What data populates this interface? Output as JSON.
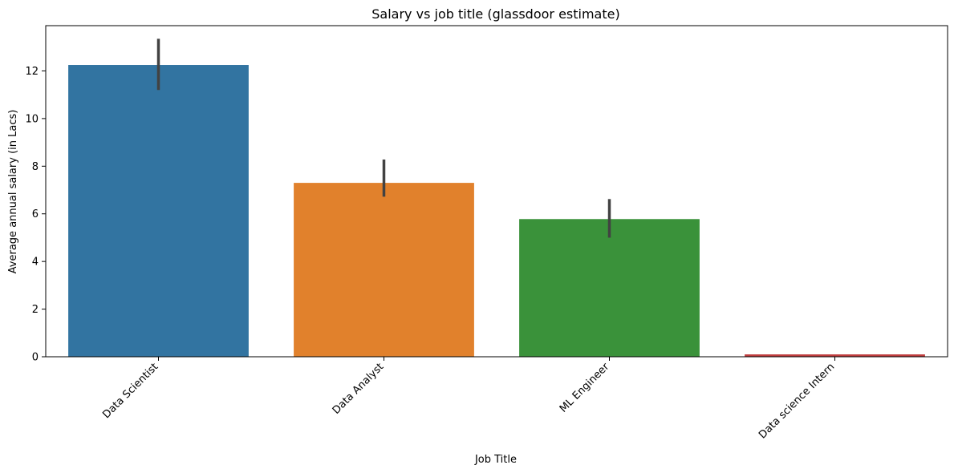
{
  "chart_data": {
    "type": "bar",
    "title": "Salary vs job title (glassdoor estimate)",
    "xlabel": "Job Title",
    "ylabel": "Average annual salary (in Lacs)",
    "categories": [
      "Data Scientist",
      "Data Analyst",
      "ML Engineer",
      "Data science Intern"
    ],
    "values": [
      12.25,
      7.3,
      5.78,
      0.1
    ],
    "error_low": [
      11.2,
      6.72,
      5.0,
      0.1
    ],
    "error_high": [
      13.35,
      8.28,
      6.62,
      0.1
    ],
    "colors": [
      "#3274a1",
      "#e1812c",
      "#3a923a",
      "#c03d3e"
    ],
    "error_color": "#424242",
    "ylim": [
      0,
      13.9
    ],
    "yticks": [
      0,
      2,
      4,
      6,
      8,
      10,
      12
    ],
    "grid": false,
    "legend": "none"
  }
}
